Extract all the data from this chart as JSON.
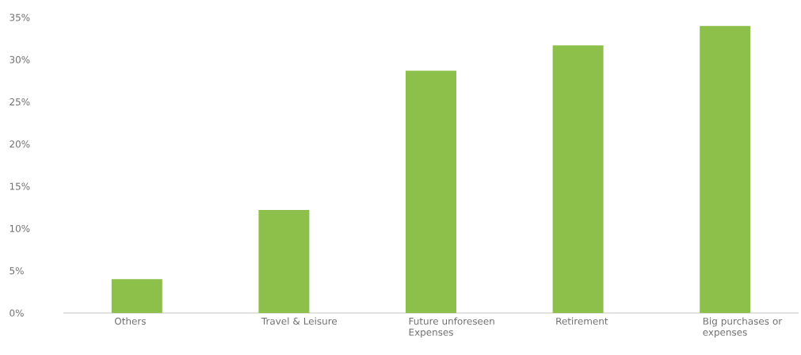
{
  "chart_data": {
    "type": "bar",
    "categories": [
      "Others",
      "Travel & Leisure",
      "Future unforeseen Expenses",
      "Retirement",
      "Big purchases or expenses"
    ],
    "values": [
      4,
      12.2,
      28.7,
      31.7,
      34
    ],
    "color": "#8cc04b",
    "ylim": [
      0,
      35
    ],
    "yticks": [
      {
        "value": 0,
        "label": "0%"
      },
      {
        "value": 5,
        "label": "5%"
      },
      {
        "value": 10,
        "label": "10%"
      },
      {
        "value": 15,
        "label": "15%"
      },
      {
        "value": 20,
        "label": "20%"
      },
      {
        "value": 25,
        "label": "25%"
      },
      {
        "value": 30,
        "label": "30%"
      },
      {
        "value": 35,
        "label": "35%"
      }
    ]
  }
}
